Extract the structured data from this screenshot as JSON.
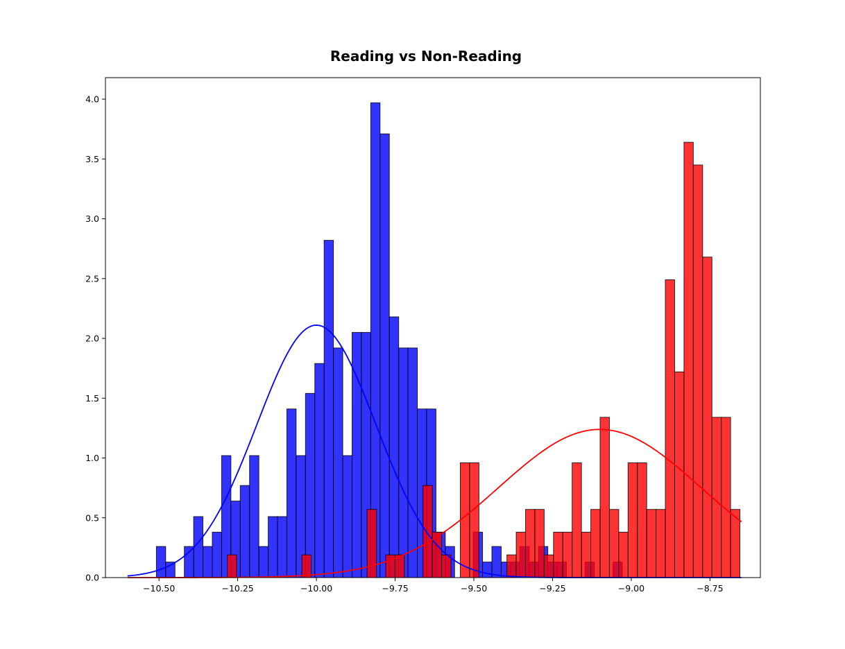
{
  "chart_data": {
    "type": "histogram",
    "title": "Reading vs Non-Reading",
    "xlabel": "",
    "ylabel": "",
    "xlim": [
      -10.67,
      -8.59
    ],
    "ylim": [
      0,
      4.18
    ],
    "x_ticks": [
      -10.5,
      -10.25,
      -10.0,
      -9.75,
      -9.5,
      -9.25,
      -9.0,
      -8.75
    ],
    "x_tick_labels": [
      "−10.50",
      "−10.25",
      "−10.00",
      "−9.75",
      "−9.50",
      "−9.25",
      "−9.00",
      "−8.75"
    ],
    "y_ticks": [
      0,
      0.5,
      1.0,
      1.5,
      2.0,
      2.5,
      3.0,
      3.5,
      4.0
    ],
    "y_tick_labels": [
      "0.0",
      "0.5",
      "1.0",
      "1.5",
      "2.0",
      "2.5",
      "3.0",
      "3.5",
      "4.0"
    ],
    "grid": false,
    "legend": false,
    "series": [
      {
        "color": "#0000ff",
        "bin_start": -10.5083,
        "bin_width": 0.0296,
        "density": [
          0.26,
          0.13,
          0.0,
          0.26,
          0.51,
          0.26,
          0.38,
          1.02,
          0.64,
          0.77,
          1.02,
          0.26,
          0.51,
          0.51,
          1.41,
          1.02,
          1.54,
          1.79,
          2.82,
          1.92,
          1.02,
          2.05,
          2.05,
          3.97,
          3.71,
          2.18,
          1.92,
          1.92,
          1.41,
          1.41,
          0.38,
          0.26,
          0.0,
          0.0,
          0.38,
          0.13,
          0.26,
          0.13,
          0.13,
          0.26,
          0.13,
          0.26,
          0.13,
          0.13,
          0.0,
          0.0,
          0.13,
          0.0,
          0.0,
          0.13
        ],
        "fit_mean": -10.0,
        "fit_std": 0.189
      },
      {
        "color": "#ff0000",
        "bin_start": -10.283,
        "bin_width": 0.0296,
        "density": [
          0.19,
          0.0,
          0.0,
          0.0,
          0.0,
          0.0,
          0.0,
          0.0,
          0.19,
          0.0,
          0.0,
          0.0,
          0.0,
          0.0,
          0.0,
          0.57,
          0.0,
          0.19,
          0.19,
          0.0,
          0.0,
          0.77,
          0.38,
          0.19,
          0.0,
          0.96,
          0.96,
          0.0,
          0.0,
          0.0,
          0.19,
          0.38,
          0.57,
          0.57,
          0.19,
          0.38,
          0.38,
          0.96,
          0.38,
          0.57,
          1.34,
          0.57,
          0.38,
          0.96,
          0.96,
          0.57,
          0.57,
          2.49,
          1.72,
          3.64,
          3.45,
          2.68,
          1.34,
          1.34,
          0.57
        ],
        "fit_mean": -9.1,
        "fit_std": 0.322
      }
    ],
    "fit_x_range": [
      -10.6,
      -8.65
    ]
  }
}
